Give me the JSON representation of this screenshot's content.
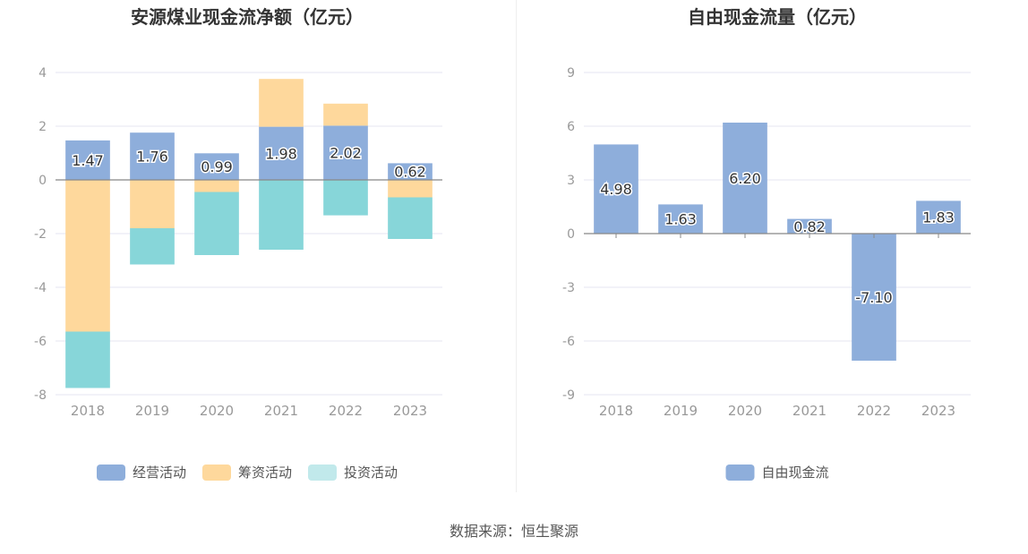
{
  "source_text": "数据来源：恒生聚源",
  "chart_data": [
    {
      "type": "bar",
      "stacked": true,
      "title": "安源煤业现金流净额（亿元）",
      "categories": [
        "2018",
        "2019",
        "2020",
        "2021",
        "2022",
        "2023"
      ],
      "ylim": [
        -8,
        4
      ],
      "yticks": [
        4,
        2,
        0,
        -2,
        -4,
        -6,
        -8
      ],
      "grid": true,
      "legend_position": "bottom",
      "series": [
        {
          "name": "经营活动",
          "color": "#8eaedb",
          "values": [
            1.47,
            1.76,
            0.99,
            1.98,
            2.02,
            0.62
          ],
          "show_labels": true
        },
        {
          "name": "筹资活动",
          "color": "#fed89c",
          "values": [
            -5.65,
            -1.8,
            -0.45,
            1.78,
            0.82,
            -0.65
          ]
        },
        {
          "name": "投资活动",
          "color": "#87d6d9",
          "legend_color": "#c1e9eb",
          "values": [
            -2.1,
            -1.35,
            -2.35,
            -2.6,
            -1.32,
            -1.55
          ]
        }
      ]
    },
    {
      "type": "bar",
      "stacked": false,
      "title": "自由现金流量（亿元）",
      "categories": [
        "2018",
        "2019",
        "2020",
        "2021",
        "2022",
        "2023"
      ],
      "ylim": [
        -9,
        9
      ],
      "yticks": [
        9,
        6,
        3,
        0,
        -3,
        -6,
        -9
      ],
      "grid": true,
      "legend_position": "bottom",
      "series": [
        {
          "name": "自由现金流",
          "color": "#8eaedb",
          "values": [
            4.98,
            1.63,
            6.2,
            0.82,
            -7.1,
            1.83
          ],
          "show_labels": true
        }
      ]
    }
  ]
}
